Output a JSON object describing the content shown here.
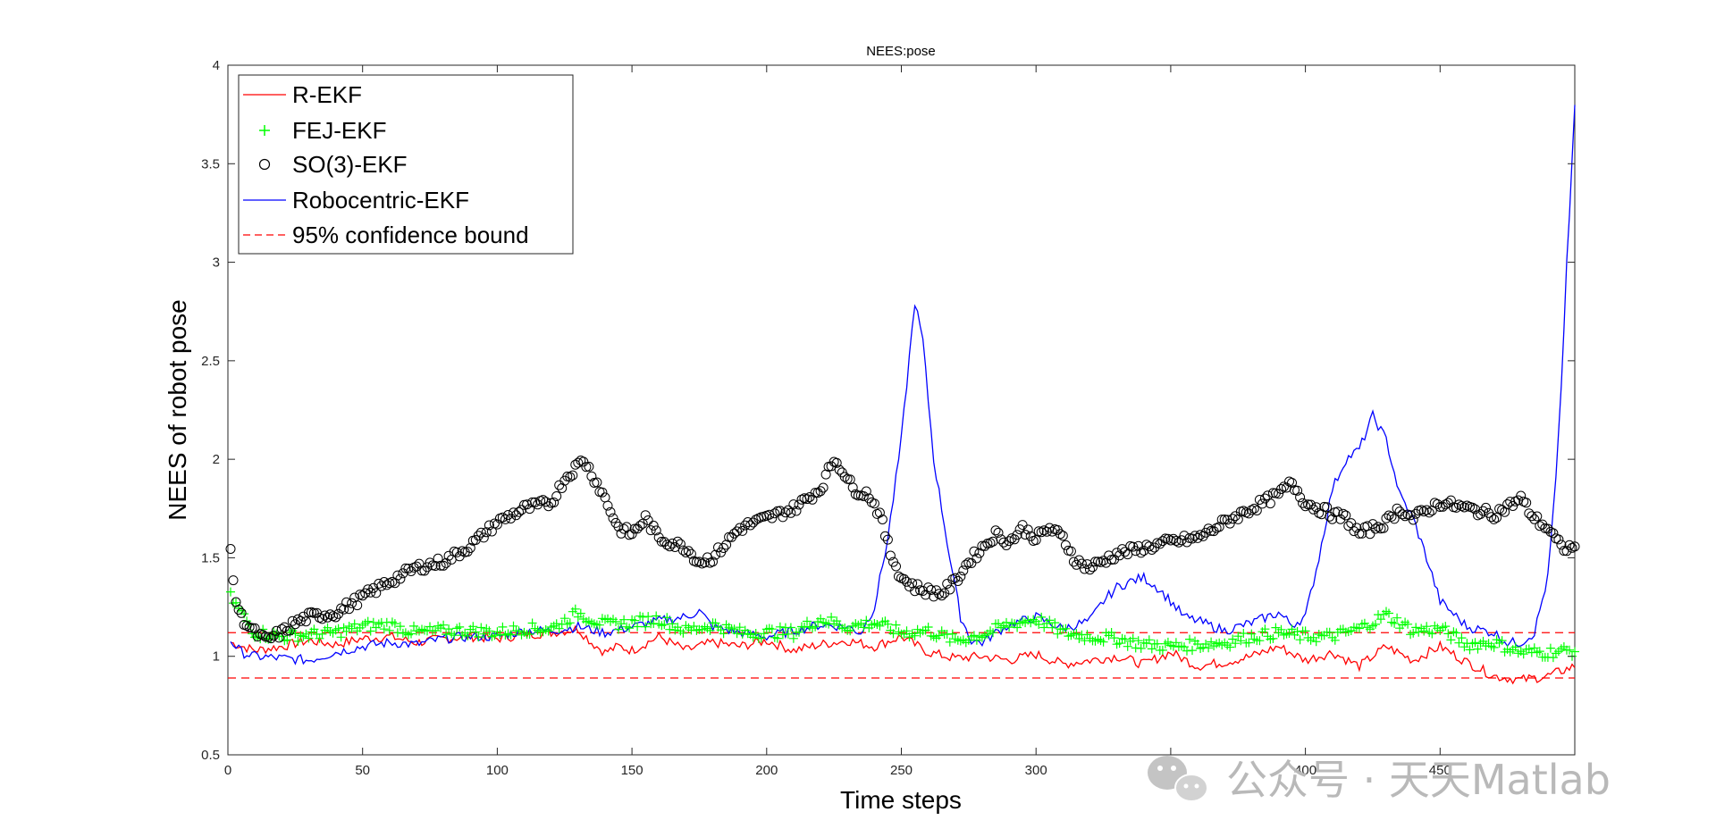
{
  "chart_data": {
    "type": "line",
    "title": "NEES:pose",
    "xlabel": "Time steps",
    "ylabel": "NEES of robot pose",
    "xlim": [
      0,
      500
    ],
    "ylim": [
      0.5,
      4
    ],
    "xticks": [
      0,
      50,
      100,
      150,
      200,
      250,
      300,
      350,
      400,
      450
    ],
    "yticks": [
      0.5,
      1,
      1.5,
      2,
      2.5,
      3,
      3.5,
      4
    ],
    "legend_position": "top-left",
    "grid": false,
    "series": [
      {
        "name": "R-EKF",
        "style": "line",
        "color": "#ff0000",
        "points": [
          [
            1,
            1.07
          ],
          [
            10,
            1.03
          ],
          [
            20,
            1.05
          ],
          [
            30,
            1.08
          ],
          [
            40,
            1.06
          ],
          [
            50,
            1.09
          ],
          [
            60,
            1.1
          ],
          [
            70,
            1.07
          ],
          [
            80,
            1.09
          ],
          [
            90,
            1.1
          ],
          [
            100,
            1.09
          ],
          [
            110,
            1.11
          ],
          [
            120,
            1.12
          ],
          [
            130,
            1.14
          ],
          [
            135,
            1.07
          ],
          [
            140,
            1.02
          ],
          [
            145,
            1.05
          ],
          [
            150,
            1.03
          ],
          [
            160,
            1.1
          ],
          [
            170,
            1.03
          ],
          [
            180,
            1.07
          ],
          [
            190,
            1.05
          ],
          [
            200,
            1.08
          ],
          [
            210,
            1.03
          ],
          [
            220,
            1.06
          ],
          [
            230,
            1.08
          ],
          [
            240,
            1.05
          ],
          [
            250,
            1.1
          ],
          [
            260,
            1.02
          ],
          [
            270,
            0.99
          ],
          [
            280,
            1.0
          ],
          [
            290,
            0.98
          ],
          [
            300,
            1.01
          ],
          [
            310,
            0.96
          ],
          [
            320,
            0.98
          ],
          [
            330,
            1.0
          ],
          [
            340,
            0.96
          ],
          [
            350,
            1.02
          ],
          [
            360,
            0.95
          ],
          [
            370,
            0.97
          ],
          [
            380,
            1.0
          ],
          [
            390,
            1.05
          ],
          [
            400,
            0.98
          ],
          [
            410,
            1.02
          ],
          [
            420,
            0.95
          ],
          [
            430,
            1.05
          ],
          [
            440,
            0.98
          ],
          [
            450,
            1.05
          ],
          [
            460,
            0.97
          ],
          [
            470,
            0.9
          ],
          [
            480,
            0.88
          ],
          [
            490,
            0.9
          ],
          [
            500,
            0.95
          ]
        ]
      },
      {
        "name": "FEJ-EKF",
        "style": "plus",
        "color": "#00ff00",
        "points": [
          [
            1,
            1.3
          ],
          [
            10,
            1.12
          ],
          [
            20,
            1.1
          ],
          [
            30,
            1.11
          ],
          [
            40,
            1.12
          ],
          [
            50,
            1.15
          ],
          [
            60,
            1.16
          ],
          [
            70,
            1.12
          ],
          [
            80,
            1.13
          ],
          [
            90,
            1.13
          ],
          [
            100,
            1.12
          ],
          [
            110,
            1.14
          ],
          [
            120,
            1.14
          ],
          [
            130,
            1.22
          ],
          [
            140,
            1.16
          ],
          [
            150,
            1.17
          ],
          [
            160,
            1.19
          ],
          [
            170,
            1.13
          ],
          [
            180,
            1.16
          ],
          [
            190,
            1.12
          ],
          [
            200,
            1.12
          ],
          [
            210,
            1.12
          ],
          [
            220,
            1.19
          ],
          [
            230,
            1.15
          ],
          [
            240,
            1.17
          ],
          [
            250,
            1.12
          ],
          [
            260,
            1.13
          ],
          [
            270,
            1.08
          ],
          [
            280,
            1.11
          ],
          [
            290,
            1.16
          ],
          [
            300,
            1.19
          ],
          [
            310,
            1.12
          ],
          [
            320,
            1.1
          ],
          [
            330,
            1.09
          ],
          [
            340,
            1.06
          ],
          [
            350,
            1.05
          ],
          [
            360,
            1.06
          ],
          [
            370,
            1.07
          ],
          [
            380,
            1.1
          ],
          [
            390,
            1.12
          ],
          [
            400,
            1.1
          ],
          [
            410,
            1.1
          ],
          [
            420,
            1.14
          ],
          [
            430,
            1.21
          ],
          [
            440,
            1.13
          ],
          [
            450,
            1.14
          ],
          [
            460,
            1.06
          ],
          [
            470,
            1.07
          ],
          [
            480,
            1.02
          ],
          [
            490,
            1.02
          ],
          [
            500,
            1.03
          ]
        ]
      },
      {
        "name": "SO(3)-EKF",
        "style": "circle",
        "color": "#000000",
        "points": [
          [
            1,
            1.52
          ],
          [
            3,
            1.28
          ],
          [
            5,
            1.2
          ],
          [
            8,
            1.15
          ],
          [
            10,
            1.12
          ],
          [
            14,
            1.08
          ],
          [
            20,
            1.12
          ],
          [
            25,
            1.17
          ],
          [
            30,
            1.2
          ],
          [
            40,
            1.22
          ],
          [
            50,
            1.3
          ],
          [
            60,
            1.38
          ],
          [
            70,
            1.45
          ],
          [
            80,
            1.48
          ],
          [
            90,
            1.56
          ],
          [
            100,
            1.68
          ],
          [
            110,
            1.75
          ],
          [
            120,
            1.78
          ],
          [
            125,
            1.9
          ],
          [
            132,
            2.0
          ],
          [
            137,
            1.88
          ],
          [
            140,
            1.8
          ],
          [
            145,
            1.65
          ],
          [
            150,
            1.62
          ],
          [
            155,
            1.7
          ],
          [
            160,
            1.6
          ],
          [
            170,
            1.55
          ],
          [
            175,
            1.48
          ],
          [
            180,
            1.5
          ],
          [
            190,
            1.65
          ],
          [
            200,
            1.7
          ],
          [
            210,
            1.75
          ],
          [
            220,
            1.85
          ],
          [
            225,
            2.0
          ],
          [
            228,
            1.95
          ],
          [
            232,
            1.85
          ],
          [
            238,
            1.82
          ],
          [
            242,
            1.72
          ],
          [
            246,
            1.52
          ],
          [
            250,
            1.4
          ],
          [
            255,
            1.35
          ],
          [
            260,
            1.33
          ],
          [
            265,
            1.32
          ],
          [
            270,
            1.38
          ],
          [
            275,
            1.48
          ],
          [
            280,
            1.55
          ],
          [
            285,
            1.62
          ],
          [
            290,
            1.58
          ],
          [
            295,
            1.65
          ],
          [
            300,
            1.6
          ],
          [
            305,
            1.65
          ],
          [
            310,
            1.6
          ],
          [
            315,
            1.48
          ],
          [
            320,
            1.45
          ],
          [
            330,
            1.52
          ],
          [
            340,
            1.55
          ],
          [
            350,
            1.58
          ],
          [
            360,
            1.6
          ],
          [
            370,
            1.68
          ],
          [
            380,
            1.75
          ],
          [
            390,
            1.82
          ],
          [
            395,
            1.88
          ],
          [
            400,
            1.78
          ],
          [
            410,
            1.72
          ],
          [
            415,
            1.7
          ],
          [
            420,
            1.62
          ],
          [
            430,
            1.68
          ],
          [
            435,
            1.75
          ],
          [
            440,
            1.7
          ],
          [
            450,
            1.78
          ],
          [
            460,
            1.75
          ],
          [
            470,
            1.72
          ],
          [
            475,
            1.76
          ],
          [
            480,
            1.8
          ],
          [
            485,
            1.7
          ],
          [
            490,
            1.65
          ],
          [
            495,
            1.55
          ],
          [
            500,
            1.55
          ]
        ]
      },
      {
        "name": "Robocentric-EKF",
        "style": "line",
        "color": "#0000ff",
        "points": [
          [
            1,
            1.08
          ],
          [
            5,
            1.02
          ],
          [
            10,
            1.0
          ],
          [
            20,
            0.99
          ],
          [
            30,
            0.98
          ],
          [
            40,
            1.02
          ],
          [
            50,
            1.05
          ],
          [
            60,
            1.07
          ],
          [
            70,
            1.06
          ],
          [
            80,
            1.09
          ],
          [
            90,
            1.1
          ],
          [
            100,
            1.1
          ],
          [
            110,
            1.13
          ],
          [
            120,
            1.13
          ],
          [
            130,
            1.15
          ],
          [
            140,
            1.12
          ],
          [
            150,
            1.15
          ],
          [
            160,
            1.18
          ],
          [
            170,
            1.2
          ],
          [
            175,
            1.23
          ],
          [
            180,
            1.15
          ],
          [
            190,
            1.12
          ],
          [
            200,
            1.1
          ],
          [
            210,
            1.13
          ],
          [
            220,
            1.16
          ],
          [
            230,
            1.15
          ],
          [
            235,
            1.12
          ],
          [
            240,
            1.25
          ],
          [
            245,
            1.6
          ],
          [
            250,
            2.1
          ],
          [
            255,
            2.8
          ],
          [
            258,
            2.6
          ],
          [
            262,
            2.0
          ],
          [
            268,
            1.5
          ],
          [
            272,
            1.2
          ],
          [
            276,
            1.08
          ],
          [
            280,
            1.07
          ],
          [
            285,
            1.12
          ],
          [
            290,
            1.16
          ],
          [
            300,
            1.2
          ],
          [
            310,
            1.14
          ],
          [
            320,
            1.18
          ],
          [
            325,
            1.28
          ],
          [
            330,
            1.35
          ],
          [
            335,
            1.38
          ],
          [
            340,
            1.4
          ],
          [
            345,
            1.35
          ],
          [
            350,
            1.28
          ],
          [
            355,
            1.2
          ],
          [
            360,
            1.18
          ],
          [
            370,
            1.13
          ],
          [
            380,
            1.17
          ],
          [
            390,
            1.22
          ],
          [
            395,
            1.16
          ],
          [
            400,
            1.2
          ],
          [
            405,
            1.5
          ],
          [
            410,
            1.85
          ],
          [
            415,
            2.0
          ],
          [
            420,
            2.05
          ],
          [
            425,
            2.22
          ],
          [
            430,
            2.1
          ],
          [
            435,
            1.82
          ],
          [
            440,
            1.7
          ],
          [
            445,
            1.5
          ],
          [
            450,
            1.28
          ],
          [
            460,
            1.15
          ],
          [
            470,
            1.12
          ],
          [
            475,
            1.07
          ],
          [
            480,
            1.07
          ],
          [
            485,
            1.12
          ],
          [
            490,
            1.4
          ],
          [
            493,
            1.9
          ],
          [
            495,
            2.35
          ],
          [
            497,
            3.0
          ],
          [
            499,
            3.5
          ],
          [
            500,
            3.8
          ]
        ]
      },
      {
        "name": "95% confidence bound",
        "style": "dashed",
        "color": "#ff0000",
        "bounds": [
          0.89,
          1.12
        ]
      }
    ]
  },
  "watermark": {
    "text": "公众号 · 天天Matlab",
    "icon": "wechat-icon"
  }
}
